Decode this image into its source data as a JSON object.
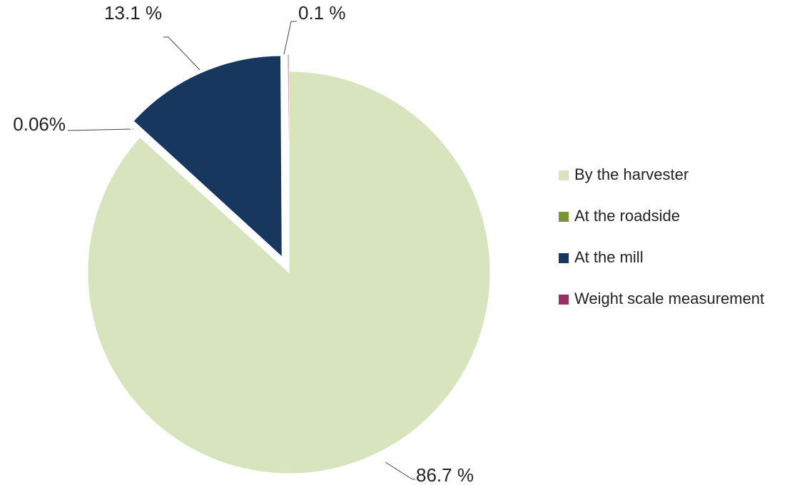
{
  "chart_data": {
    "type": "pie",
    "categories": [
      "By the harvester",
      "At the roadside",
      "At the mill",
      "Weight scale measurement"
    ],
    "values": [
      86.7,
      0.06,
      13.1,
      0.1
    ],
    "value_labels": [
      "86.7 %",
      "0.06%",
      "13.1 %",
      "0.1 %"
    ],
    "colors": [
      "#d7e4bd",
      "#77933c",
      "#17375e",
      "#953163"
    ],
    "legend": "right"
  }
}
